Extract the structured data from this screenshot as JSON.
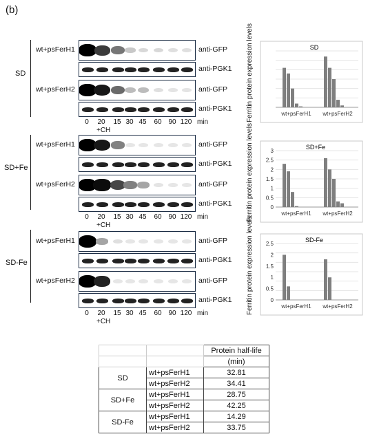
{
  "panel_label": "(b)",
  "time_ticks": [
    "0",
    "20",
    "15",
    "30",
    "45",
    "60",
    "90",
    "120"
  ],
  "time_unit": "min",
  "ch_label": "+CH",
  "antibodies": {
    "gfp": "anti-GFP",
    "pgk": "anti-PGK1"
  },
  "samples": [
    "wt+psFerH1",
    "wt+psFerH2"
  ],
  "conditions": [
    {
      "name": "SD",
      "blots": [
        {
          "gfp": [
            1.0,
            0.75,
            0.5,
            0.15,
            0.08,
            0.08,
            0.05,
            0.05
          ],
          "pgk": [
            0.9,
            0.9,
            0.9,
            0.9,
            0.9,
            0.9,
            0.9,
            0.9
          ]
        },
        {
          "gfp": [
            1.0,
            0.9,
            0.55,
            0.2,
            0.2,
            0.05,
            0.03,
            0.03
          ],
          "pgk": [
            0.9,
            0.9,
            0.9,
            0.9,
            0.9,
            0.9,
            0.9,
            0.9
          ]
        }
      ]
    },
    {
      "name": "SD+Fe",
      "blots": [
        {
          "gfp": [
            1.0,
            0.9,
            0.45,
            0.02,
            0.02,
            0.02,
            0.02,
            0.02
          ],
          "pgk": [
            0.9,
            0.9,
            0.9,
            0.9,
            0.9,
            0.9,
            0.9,
            0.9
          ]
        },
        {
          "gfp": [
            1.0,
            0.95,
            0.7,
            0.45,
            0.3,
            0.03,
            0.02,
            0.02
          ],
          "pgk": [
            0.9,
            0.9,
            0.9,
            0.9,
            0.9,
            0.9,
            0.9,
            0.9
          ]
        }
      ]
    },
    {
      "name": "SD-Fe",
      "blots": [
        {
          "gfp": [
            1.0,
            0.3,
            0.05,
            0.02,
            0.02,
            0.02,
            0.02,
            0.02
          ],
          "pgk": [
            0.9,
            0.9,
            0.9,
            0.9,
            0.9,
            0.9,
            0.9,
            0.9
          ]
        },
        {
          "gfp": [
            1.0,
            0.85,
            0.02,
            0.02,
            0.02,
            0.02,
            0.02,
            0.02
          ],
          "pgk": [
            0.9,
            0.9,
            0.9,
            0.9,
            0.9,
            0.9,
            0.9,
            0.9
          ]
        }
      ]
    }
  ],
  "chart_data": [
    {
      "type": "bar",
      "title": "SD",
      "ylabel": "Ferritin protein expression levels",
      "categories": [
        "wt+psFerH1",
        "wt+psFerH2"
      ],
      "series_values": [
        [
          2.1,
          1.8,
          1.0,
          0.2,
          0.05
        ],
        [
          2.7,
          2.1,
          1.5,
          0.4,
          0.1
        ]
      ],
      "yticks": [],
      "ylim": [
        0,
        3
      ]
    },
    {
      "type": "bar",
      "title": "SD+Fe",
      "ylabel": "Ferritin protein expression levels",
      "categories": [
        "wt+psFerH1",
        "wt+psFerH2"
      ],
      "series_values": [
        [
          2.3,
          1.9,
          0.8,
          0.05,
          0.0
        ],
        [
          2.6,
          2.0,
          1.5,
          0.3,
          0.2
        ]
      ],
      "yticks": [
        "0",
        "0.5",
        "1",
        "1.5",
        "2",
        "2.5",
        "3"
      ],
      "ylim": [
        0,
        3
      ]
    },
    {
      "type": "bar",
      "title": "SD-Fe",
      "ylabel": "Ferritin protein expression levels",
      "categories": [
        "wt+psFerH1",
        "wt+psFerH2"
      ],
      "series_values": [
        [
          2.0,
          0.6,
          0.0
        ],
        [
          1.8,
          1.0,
          0.0
        ]
      ],
      "yticks": [
        "0",
        "0.5",
        "1",
        "1.5",
        "2",
        "2.5"
      ],
      "ylim": [
        0,
        2.5
      ]
    }
  ],
  "table": {
    "header": [
      "Protein half-life",
      "(min)"
    ],
    "rows": [
      {
        "condition": "SD",
        "sample": "wt+psFerH1",
        "value": "32.81"
      },
      {
        "condition": "",
        "sample": "wt+psFerH2",
        "value": "34.41"
      },
      {
        "condition": "SD+Fe",
        "sample": "wt+psFerH1",
        "value": "28.75"
      },
      {
        "condition": "",
        "sample": "wt+psFerH2",
        "value": "42.25"
      },
      {
        "condition": "SD-Fe",
        "sample": "wt+psFerH1",
        "value": "14.29"
      },
      {
        "condition": "",
        "sample": "wt+psFerH2",
        "value": "33.75"
      }
    ]
  }
}
